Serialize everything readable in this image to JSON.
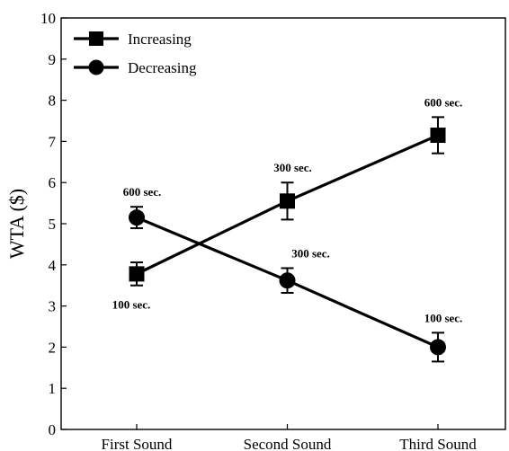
{
  "chart_data": {
    "type": "line",
    "categories": [
      "First Sound",
      "Second Sound",
      "Third Sound"
    ],
    "ylabel": "WTA ($)",
    "xlabel": "",
    "ylim": [
      0,
      10
    ],
    "yticks": [
      "0",
      "1",
      "2",
      "3",
      "4",
      "5",
      "6",
      "7",
      "8",
      "9",
      "10"
    ],
    "grid": false,
    "legend_position": "top-left",
    "series": [
      {
        "name": "Increasing",
        "marker": "square",
        "values": [
          3.78,
          5.55,
          7.15
        ],
        "error": [
          0.28,
          0.45,
          0.44
        ],
        "annotations": [
          "100 sec.",
          "300 sec.",
          "600 sec."
        ],
        "annotation_side": [
          "below",
          "above",
          "above"
        ]
      },
      {
        "name": "Decreasing",
        "marker": "circle",
        "values": [
          5.15,
          3.62,
          2.0
        ],
        "error": [
          0.26,
          0.3,
          0.35
        ],
        "annotations": [
          "600 sec.",
          "300 sec.",
          "100 sec."
        ],
        "annotation_side": [
          "above",
          "above",
          "above"
        ]
      }
    ]
  }
}
